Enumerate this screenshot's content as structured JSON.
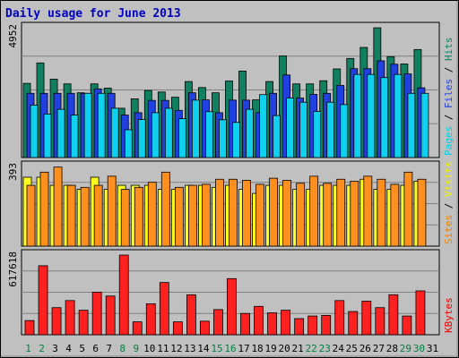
{
  "chart_data": {
    "title": "Daily usage for June 2013",
    "days": [
      "1",
      "2",
      "3",
      "4",
      "5",
      "6",
      "7",
      "8",
      "9",
      "10",
      "11",
      "12",
      "13",
      "14",
      "15",
      "16",
      "17",
      "18",
      "19",
      "20",
      "21",
      "22",
      "23",
      "24",
      "25",
      "26",
      "27",
      "28",
      "29",
      "30",
      "31"
    ],
    "weekend_days": [
      "1",
      "2",
      "8",
      "9",
      "15",
      "16",
      "22",
      "23",
      "29",
      "30"
    ],
    "panels": [
      {
        "type": "bar",
        "ylim_max_label": "4952",
        "ylabel_parts": [
          "Pages",
          "Files",
          "Hits"
        ],
        "ylabel_colors": [
          "#00d0e0",
          "#2040e0",
          "#108060"
        ],
        "max": 4952,
        "series": [
          {
            "name": "Hits",
            "color": "#108060",
            "values": [
              2830,
              3610,
              2990,
              2810,
              2470,
              2810,
              2650,
              1880,
              2240,
              2560,
              2500,
              2300,
              2900,
              2670,
              2470,
              2920,
              3300,
              2200,
              2900,
              3880,
              2810,
              2810,
              2930,
              3380,
              3780,
              4200,
              4950,
              3850,
              3570,
              4120,
              0
            ]
          },
          {
            "name": "Files",
            "color": "#2040e0",
            "values": [
              2450,
              2450,
              2450,
              2450,
              2450,
              2620,
              2450,
              1620,
              1710,
              2180,
              2180,
              1800,
              2470,
              2200,
              1710,
              2190,
              2190,
              1710,
              2450,
              3150,
              2270,
              2410,
              2450,
              2750,
              3390,
              3390,
              3690,
              3560,
              3190,
              2660,
              0
            ]
          },
          {
            "name": "Pages",
            "color": "#10d0f0",
            "values": [
              2000,
              1660,
              1840,
              1620,
              2450,
              2450,
              1880,
              1060,
              1450,
              1710,
              1880,
              1480,
              2190,
              1750,
              1440,
              1340,
              1840,
              2400,
              1600,
              2270,
              2110,
              1760,
              2110,
              2020,
              3170,
              3170,
              3050,
              3170,
              2450,
              2450,
              0
            ]
          }
        ]
      },
      {
        "type": "bar",
        "ylim_max_label": "393",
        "ylabel_parts": [
          "Sites",
          "Visits"
        ],
        "ylabel_colors": [
          "#f08000",
          "#f0f000"
        ],
        "max": 393,
        "series": [
          {
            "name": "Visits",
            "color": "#ffff20",
            "values": [
              340,
              340,
              300,
              300,
              280,
              340,
              280,
              300,
              300,
              300,
              280,
              280,
              300,
              300,
              290,
              300,
              280,
              260,
              300,
              300,
              280,
              280,
              300,
              300,
              300,
              330,
              280,
              280,
              300,
              320,
              0
            ]
          },
          {
            "name": "Sites",
            "color": "#ff9020",
            "values": [
              300,
              365,
              390,
              300,
              290,
              300,
              345,
              280,
              290,
              315,
              365,
              290,
              300,
              305,
              330,
              330,
              325,
              305,
              335,
              325,
              310,
              345,
              310,
              330,
              320,
              345,
              330,
              305,
              365,
              330,
              0
            ]
          }
        ]
      },
      {
        "type": "bar",
        "ylim_max_label": "617618",
        "ylabel_parts": [
          "KBytes"
        ],
        "ylabel_colors": [
          "#f00000"
        ],
        "max": 617618,
        "series": [
          {
            "name": "KBytes",
            "color": "#ff2020",
            "values": [
              110000,
              535000,
              210000,
              265000,
              190000,
              330000,
              300000,
              617618,
              100000,
              240000,
              405000,
              100000,
              310000,
              105000,
              195000,
              435000,
              165000,
              220000,
              170000,
              190000,
              125000,
              145000,
              150000,
              265000,
              180000,
              260000,
              210000,
              310000,
              145000,
              340000,
              0
            ]
          }
        ]
      }
    ]
  }
}
